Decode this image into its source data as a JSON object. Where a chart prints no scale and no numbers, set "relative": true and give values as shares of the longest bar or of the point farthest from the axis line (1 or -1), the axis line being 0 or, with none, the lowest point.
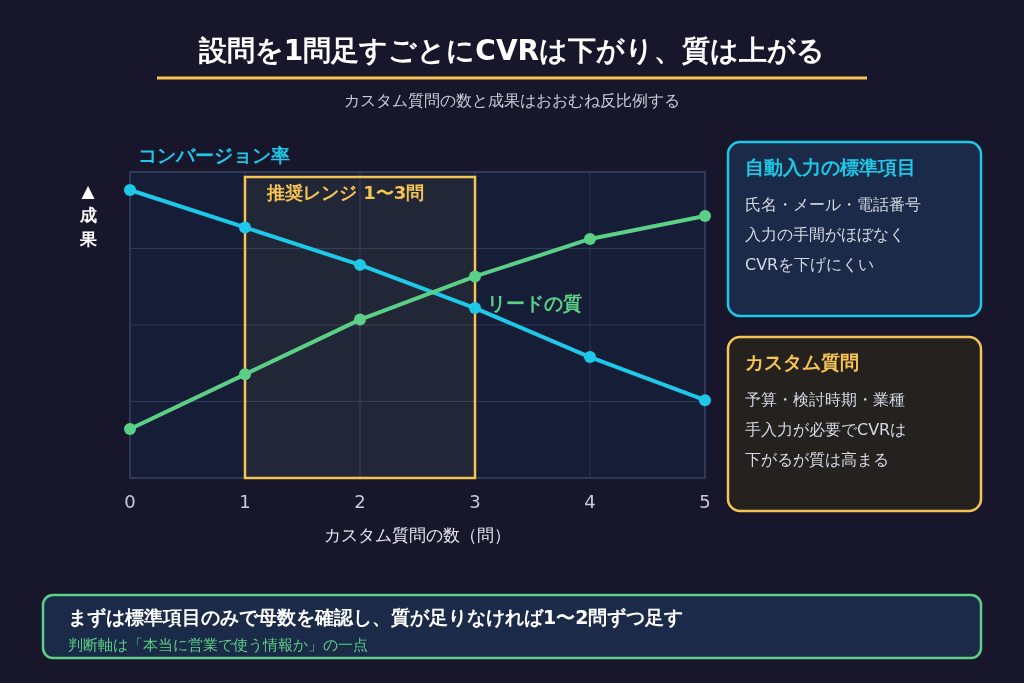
{
  "chart_data": {
    "type": "line",
    "title": "設問を1問足すごとにCVRは下がり、質は上がる",
    "subtitle": "カスタム質問の数と成果はおおむね反比例する",
    "xlabel": "カスタム質問の数（問）",
    "ylabel": "▲成果",
    "x": [
      0,
      1,
      2,
      3,
      4,
      5
    ],
    "xlim": [
      0,
      5
    ],
    "xticks": [
      0,
      1,
      2,
      3,
      4,
      5
    ],
    "relative": true,
    "grid": true,
    "marker": "circle",
    "line_style": "solid",
    "series": [
      {
        "name": "コンバージョン率",
        "color": "#1ec8e8",
        "values": [
          1,
          0.87,
          0.74,
          0.59,
          0.42,
          0.27
        ]
      },
      {
        "name": "リードの質",
        "color": "#5ccf86",
        "values": [
          0.17,
          0.36,
          0.55,
          0.7,
          0.83,
          0.91
        ]
      }
    ],
    "bands": [
      {
        "axis": "x",
        "from": 1,
        "to": 3,
        "label": "推奨レンジ 1〜3問",
        "color": "#f6c453"
      }
    ],
    "annotations": [
      "自動入力の標準項目",
      "氏名・メール・電話番号",
      "入力の手間がほぼなく",
      "CVRを下げにくい",
      "カスタム質問",
      "予算・検討時期・業種",
      "手入力が必要でCVRは",
      "下がるが質は高まる",
      "まずは標準項目のみで母数を確認し、質が足りなければ1〜2問ずつ足す",
      "判断軸は「本当に営業で使う情報か」の一点"
    ]
  }
}
